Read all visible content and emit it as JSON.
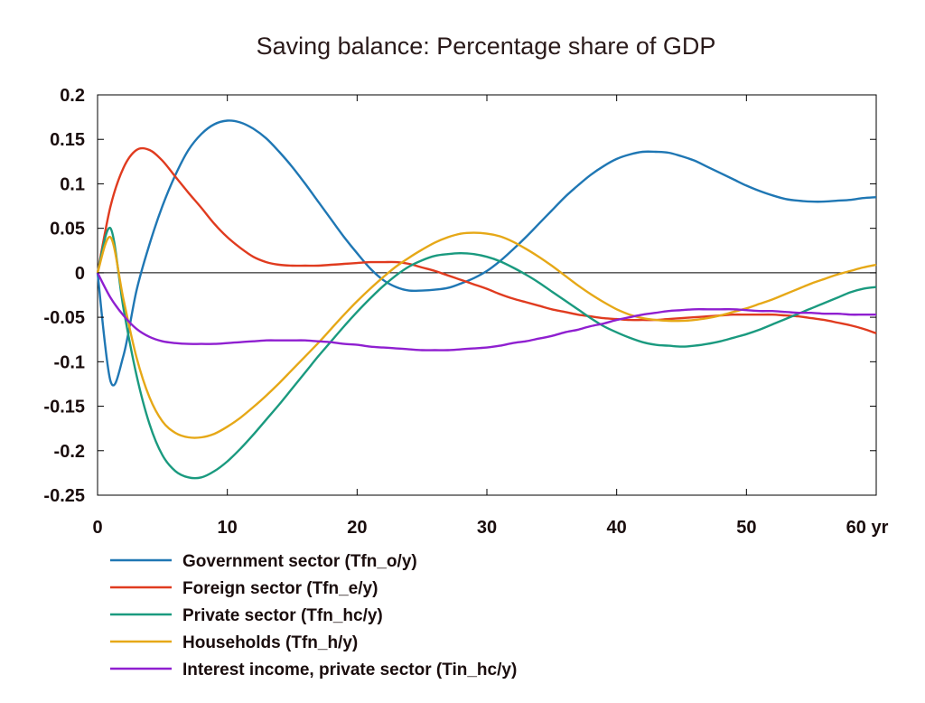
{
  "chart_data": {
    "type": "line",
    "title": "Saving balance: Percentage share of GDP",
    "xlabel": "",
    "ylabel": "",
    "x_unit_label": "yr",
    "xlim": [
      0,
      60
    ],
    "ylim": [
      -0.25,
      0.2
    ],
    "x_ticks": [
      0,
      10,
      20,
      30,
      40,
      50,
      60
    ],
    "x_tick_labels": [
      "0",
      "10",
      "20",
      "30",
      "40",
      "50",
      "60 yr"
    ],
    "y_ticks": [
      0.2,
      0.15,
      0.1,
      0.05,
      0,
      -0.05,
      -0.1,
      -0.15,
      -0.2,
      -0.25
    ],
    "y_tick_labels": [
      "0.2",
      "0.15",
      "0.1",
      "0.05",
      "0",
      "-0.05",
      "-0.1",
      "-0.15",
      "-0.2",
      "-0.25"
    ],
    "grid": false,
    "zero_line": true,
    "legend_position": "bottom",
    "series": [
      {
        "name": "Government sector (Tfn_o/y)",
        "color": "#1f77b4",
        "x": [
          0,
          1,
          2,
          3,
          4,
          5,
          6,
          7,
          8,
          9,
          10,
          11,
          12,
          13,
          14,
          15,
          16,
          17,
          18,
          19,
          20,
          21,
          22,
          23,
          24,
          25,
          26,
          27,
          28,
          29,
          30,
          31,
          32,
          33,
          34,
          35,
          36,
          37,
          38,
          39,
          40,
          41,
          42,
          43,
          44,
          45,
          46,
          47,
          48,
          49,
          50,
          51,
          52,
          53,
          54,
          55,
          56,
          57,
          58,
          59,
          60
        ],
        "y": [
          0,
          -0.122,
          -0.093,
          -0.02,
          0.032,
          0.075,
          0.11,
          0.138,
          0.156,
          0.167,
          0.171,
          0.169,
          0.162,
          0.151,
          0.136,
          0.119,
          0.1,
          0.08,
          0.06,
          0.04,
          0.022,
          0.005,
          -0.008,
          -0.016,
          -0.02,
          -0.02,
          -0.019,
          -0.017,
          -0.012,
          -0.006,
          0.002,
          0.013,
          0.026,
          0.04,
          0.055,
          0.07,
          0.085,
          0.098,
          0.11,
          0.12,
          0.128,
          0.133,
          0.136,
          0.136,
          0.135,
          0.131,
          0.126,
          0.119,
          0.112,
          0.105,
          0.098,
          0.092,
          0.087,
          0.083,
          0.081,
          0.08,
          0.08,
          0.081,
          0.082,
          0.084,
          0.085
        ]
      },
      {
        "name": "Foreign sector (Tfn_e/y)",
        "color": "#e03b1f",
        "x": [
          0,
          1,
          2,
          3,
          4,
          5,
          6,
          7,
          8,
          9,
          10,
          11,
          12,
          13,
          14,
          15,
          16,
          17,
          18,
          19,
          20,
          21,
          22,
          23,
          24,
          25,
          26,
          27,
          28,
          29,
          30,
          31,
          32,
          33,
          34,
          35,
          36,
          37,
          38,
          39,
          40,
          41,
          42,
          43,
          44,
          45,
          46,
          47,
          48,
          49,
          50,
          51,
          52,
          53,
          54,
          55,
          56,
          57,
          58,
          59,
          60
        ],
        "y": [
          0,
          0.075,
          0.118,
          0.138,
          0.138,
          0.126,
          0.108,
          0.09,
          0.073,
          0.055,
          0.04,
          0.028,
          0.018,
          0.012,
          0.009,
          0.008,
          0.008,
          0.008,
          0.009,
          0.01,
          0.011,
          0.012,
          0.012,
          0.012,
          0.01,
          0.006,
          0.002,
          -0.003,
          -0.008,
          -0.013,
          -0.018,
          -0.024,
          -0.029,
          -0.033,
          -0.037,
          -0.041,
          -0.044,
          -0.047,
          -0.049,
          -0.051,
          -0.052,
          -0.053,
          -0.053,
          -0.053,
          -0.052,
          -0.051,
          -0.05,
          -0.049,
          -0.048,
          -0.047,
          -0.047,
          -0.047,
          -0.047,
          -0.048,
          -0.049,
          -0.051,
          -0.053,
          -0.056,
          -0.059,
          -0.063,
          -0.068
        ]
      },
      {
        "name": "Private sector (Tfn_hc/y)",
        "color": "#1a9a7f",
        "x": [
          0,
          1,
          2,
          3,
          4,
          5,
          6,
          7,
          8,
          9,
          10,
          11,
          12,
          13,
          14,
          15,
          16,
          17,
          18,
          19,
          20,
          21,
          22,
          23,
          24,
          25,
          26,
          27,
          28,
          29,
          30,
          31,
          32,
          33,
          34,
          35,
          36,
          37,
          38,
          39,
          40,
          41,
          42,
          43,
          44,
          45,
          46,
          47,
          48,
          49,
          50,
          51,
          52,
          53,
          54,
          55,
          56,
          57,
          58,
          59,
          60
        ],
        "y": [
          0,
          0.05,
          -0.04,
          -0.115,
          -0.17,
          -0.205,
          -0.223,
          -0.23,
          -0.23,
          -0.223,
          -0.212,
          -0.198,
          -0.182,
          -0.165,
          -0.148,
          -0.13,
          -0.112,
          -0.094,
          -0.077,
          -0.06,
          -0.044,
          -0.029,
          -0.015,
          -0.003,
          0.007,
          0.014,
          0.019,
          0.021,
          0.022,
          0.021,
          0.018,
          0.013,
          0.006,
          -0.002,
          -0.011,
          -0.021,
          -0.031,
          -0.041,
          -0.051,
          -0.06,
          -0.067,
          -0.073,
          -0.078,
          -0.081,
          -0.082,
          -0.083,
          -0.082,
          -0.08,
          -0.077,
          -0.073,
          -0.069,
          -0.064,
          -0.058,
          -0.052,
          -0.046,
          -0.04,
          -0.034,
          -0.028,
          -0.022,
          -0.018,
          -0.016
        ]
      },
      {
        "name": "Households (Tfn_h/y)",
        "color": "#e6a817",
        "x": [
          0,
          1,
          2,
          3,
          4,
          5,
          6,
          7,
          8,
          9,
          10,
          11,
          12,
          13,
          14,
          15,
          16,
          17,
          18,
          19,
          20,
          21,
          22,
          23,
          24,
          25,
          26,
          27,
          28,
          29,
          30,
          31,
          32,
          33,
          34,
          35,
          36,
          37,
          38,
          39,
          40,
          41,
          42,
          43,
          44,
          45,
          46,
          47,
          48,
          49,
          50,
          51,
          52,
          53,
          54,
          55,
          56,
          57,
          58,
          59,
          60
        ],
        "y": [
          0,
          0.04,
          -0.03,
          -0.095,
          -0.14,
          -0.167,
          -0.18,
          -0.185,
          -0.185,
          -0.181,
          -0.173,
          -0.163,
          -0.151,
          -0.138,
          -0.124,
          -0.109,
          -0.094,
          -0.079,
          -0.063,
          -0.047,
          -0.032,
          -0.018,
          -0.005,
          0.007,
          0.017,
          0.026,
          0.034,
          0.04,
          0.044,
          0.045,
          0.044,
          0.041,
          0.035,
          0.027,
          0.018,
          0.008,
          -0.003,
          -0.014,
          -0.024,
          -0.033,
          -0.041,
          -0.047,
          -0.051,
          -0.053,
          -0.054,
          -0.054,
          -0.053,
          -0.051,
          -0.048,
          -0.044,
          -0.04,
          -0.035,
          -0.03,
          -0.024,
          -0.018,
          -0.012,
          -0.007,
          -0.002,
          0.002,
          0.006,
          0.009
        ]
      },
      {
        "name": "Interest income, private sector (Tin_hc/y)",
        "color": "#8f1fd0",
        "x": [
          0,
          1,
          2,
          3,
          4,
          5,
          6,
          7,
          8,
          9,
          10,
          11,
          12,
          13,
          14,
          15,
          16,
          17,
          18,
          19,
          20,
          21,
          22,
          23,
          24,
          25,
          26,
          27,
          28,
          29,
          30,
          31,
          32,
          33,
          34,
          35,
          36,
          37,
          38,
          39,
          40,
          41,
          42,
          43,
          44,
          45,
          46,
          47,
          48,
          49,
          50,
          51,
          52,
          53,
          54,
          55,
          56,
          57,
          58,
          59,
          60
        ],
        "y": [
          0,
          -0.028,
          -0.048,
          -0.063,
          -0.072,
          -0.077,
          -0.079,
          -0.08,
          -0.08,
          -0.08,
          -0.079,
          -0.078,
          -0.077,
          -0.076,
          -0.076,
          -0.076,
          -0.076,
          -0.077,
          -0.078,
          -0.08,
          -0.081,
          -0.083,
          -0.084,
          -0.085,
          -0.086,
          -0.087,
          -0.087,
          -0.087,
          -0.086,
          -0.085,
          -0.084,
          -0.082,
          -0.079,
          -0.077,
          -0.074,
          -0.071,
          -0.067,
          -0.064,
          -0.06,
          -0.057,
          -0.053,
          -0.05,
          -0.047,
          -0.045,
          -0.043,
          -0.042,
          -0.041,
          -0.041,
          -0.041,
          -0.041,
          -0.042,
          -0.043,
          -0.043,
          -0.044,
          -0.045,
          -0.045,
          -0.046,
          -0.046,
          -0.047,
          -0.047,
          -0.047
        ]
      }
    ]
  }
}
